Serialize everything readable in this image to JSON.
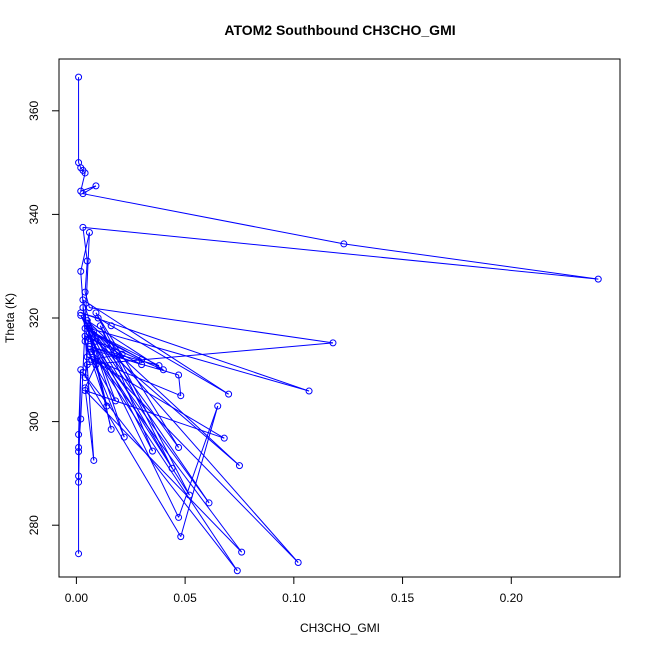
{
  "chart_data": {
    "type": "line",
    "title": "ATOM2 Southbound CH3CHO_GMI",
    "xlabel": "CH3CHO_GMI",
    "ylabel": "Theta (K)",
    "xlim": [
      -0.008,
      0.25
    ],
    "ylim": [
      270,
      370
    ],
    "x_ticks": [
      0.0,
      0.05,
      0.1,
      0.15,
      0.2
    ],
    "x_tick_labels": [
      "0.00",
      "0.05",
      "0.10",
      "0.15",
      "0.20"
    ],
    "y_ticks": [
      280,
      300,
      320,
      340,
      360
    ],
    "y_tick_labels": [
      "280",
      "300",
      "320",
      "340",
      "360"
    ],
    "grid": false,
    "series": [
      {
        "color": "#0000ff",
        "marker": "open-circle",
        "points": [
          [
            0.001,
            366.5
          ],
          [
            0.001,
            350.0
          ],
          [
            0.002,
            349.0
          ],
          [
            0.003,
            348.5
          ],
          [
            0.004,
            348.0
          ],
          [
            0.002,
            344.5
          ],
          [
            0.009,
            345.5
          ],
          [
            0.003,
            344.0
          ],
          [
            0.123,
            334.3
          ],
          [
            0.24,
            327.5
          ],
          [
            0.003,
            337.5
          ],
          [
            0.005,
            331.0
          ],
          [
            0.004,
            325.0
          ],
          [
            0.006,
            322.0
          ],
          [
            0.118,
            315.2
          ],
          [
            0.005,
            311.0
          ],
          [
            0.004,
            308.5
          ],
          [
            0.006,
            318.0
          ],
          [
            0.107,
            305.9
          ],
          [
            0.002,
            321.0
          ],
          [
            0.01,
            320.0
          ],
          [
            0.016,
            318.5
          ],
          [
            0.07,
            305.3
          ],
          [
            0.003,
            323.5
          ],
          [
            0.009,
            315.5
          ],
          [
            0.075,
            291.5
          ],
          [
            0.008,
            317.5
          ],
          [
            0.102,
            272.8
          ],
          [
            0.006,
            314.0
          ],
          [
            0.047,
            309.0
          ],
          [
            0.048,
            305.0
          ],
          [
            0.005,
            312.5
          ],
          [
            0.068,
            296.8
          ],
          [
            0.004,
            306.0
          ],
          [
            0.076,
            274.8
          ],
          [
            0.007,
            313.5
          ],
          [
            0.074,
            271.2
          ],
          [
            0.003,
            309.5
          ],
          [
            0.048,
            277.8
          ],
          [
            0.065,
            303.0
          ],
          [
            0.047,
            281.5
          ],
          [
            0.002,
            320.5
          ],
          [
            0.061,
            284.3
          ],
          [
            0.006,
            316.0
          ],
          [
            0.052,
            285.8
          ],
          [
            0.009,
            321.0
          ],
          [
            0.047,
            295.0
          ],
          [
            0.005,
            319.0
          ],
          [
            0.044,
            291.0
          ],
          [
            0.011,
            318.5
          ],
          [
            0.035,
            294.3
          ],
          [
            0.007,
            317.0
          ],
          [
            0.03,
            312.0
          ],
          [
            0.004,
            318.0
          ],
          [
            0.038,
            310.8
          ],
          [
            0.006,
            314.5
          ],
          [
            0.03,
            311.0
          ],
          [
            0.004,
            316.5
          ],
          [
            0.04,
            310.0
          ],
          [
            0.005,
            319.5
          ],
          [
            0.021,
            313.0
          ],
          [
            0.007,
            312.0
          ],
          [
            0.018,
            304.0
          ],
          [
            0.005,
            318.5
          ],
          [
            0.022,
            297.0
          ],
          [
            0.004,
            315.5
          ],
          [
            0.014,
            303.0
          ],
          [
            0.006,
            317.0
          ],
          [
            0.016,
            298.5
          ],
          [
            0.003,
            322.0
          ],
          [
            0.009,
            311.0
          ],
          [
            0.004,
            306.5
          ],
          [
            0.008,
            292.5
          ],
          [
            0.002,
            329.0
          ],
          [
            0.006,
            336.5
          ],
          [
            0.002,
            300.5
          ],
          [
            0.001,
            295.0
          ],
          [
            0.001,
            294.2
          ],
          [
            0.001,
            289.5
          ],
          [
            0.001,
            288.3
          ],
          [
            0.002,
            310.0
          ],
          [
            0.001,
            297.5
          ],
          [
            0.001,
            274.5
          ]
        ]
      }
    ]
  }
}
